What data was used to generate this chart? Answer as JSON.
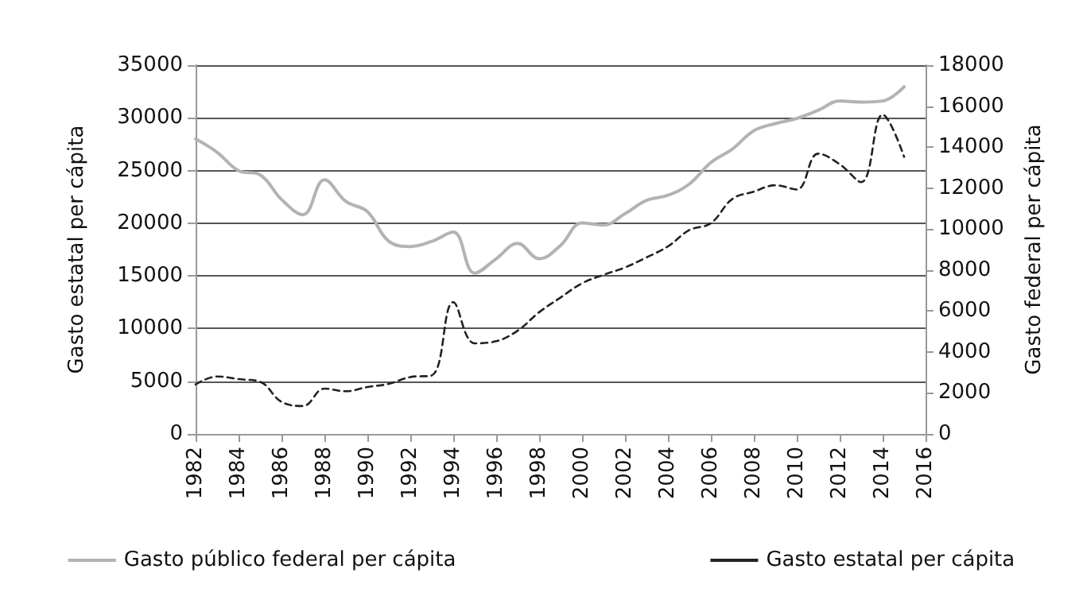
{
  "chart_data": {
    "type": "line",
    "xlabel": null,
    "ylabel": "Gasto estatal per cápita",
    "y2label": "Gasto federal per cápita",
    "x": [
      1982,
      1983,
      1984,
      1985,
      1986,
      1987,
      1988,
      1989,
      1990,
      1991,
      1992,
      1993,
      1994,
      1995,
      1996,
      1997,
      1998,
      1999,
      2000,
      2001,
      2002,
      2003,
      2004,
      2005,
      2006,
      2007,
      2008,
      2009,
      2010,
      2011,
      2012,
      2013,
      2014,
      2015
    ],
    "series": [
      {
        "name": "Gasto público federal per cápita",
        "color": "#b3b3b3",
        "axis": "y2",
        "line_style": "solid",
        "values": [
          14400,
          13750,
          12850,
          12650,
          11450,
          10700,
          12400,
          11350,
          10850,
          9400,
          9150,
          9400,
          9850,
          7850,
          8550,
          9300,
          8550,
          9200,
          10300,
          10200,
          10750,
          11400,
          11650,
          12200,
          13250,
          13900,
          14800,
          15150,
          15400,
          15800,
          16250,
          16200,
          16250,
          16950
        ]
      },
      {
        "name": "Gasto estatal per cápita",
        "color": "#222222",
        "axis": "y",
        "line_style": "dashed",
        "values": [
          4700,
          5450,
          5200,
          4950,
          3050,
          2650,
          4300,
          4050,
          4450,
          4750,
          5400,
          5550,
          12500,
          8600,
          8800,
          9800,
          11550,
          12950,
          14300,
          15100,
          15800,
          16750,
          17800,
          19350,
          20000,
          22300,
          23000,
          23600,
          23200,
          26600,
          25600,
          23900,
          30300,
          26300
        ]
      }
    ],
    "xlim": [
      1982,
      2016
    ],
    "xticks": [
      1982,
      1984,
      1986,
      1988,
      1990,
      1992,
      1994,
      1996,
      1998,
      2000,
      2002,
      2004,
      2006,
      2008,
      2010,
      2012,
      2014,
      2016
    ],
    "ylim": [
      0,
      35000
    ],
    "yticks": [
      0,
      5000,
      10000,
      15000,
      20000,
      25000,
      30000,
      35000
    ],
    "y2lim": [
      0,
      18000
    ],
    "y2ticks": [
      0,
      2000,
      4000,
      6000,
      8000,
      10000,
      12000,
      14000,
      16000,
      18000
    ],
    "grid": "y",
    "legend": "bottom",
    "marker": "none"
  }
}
